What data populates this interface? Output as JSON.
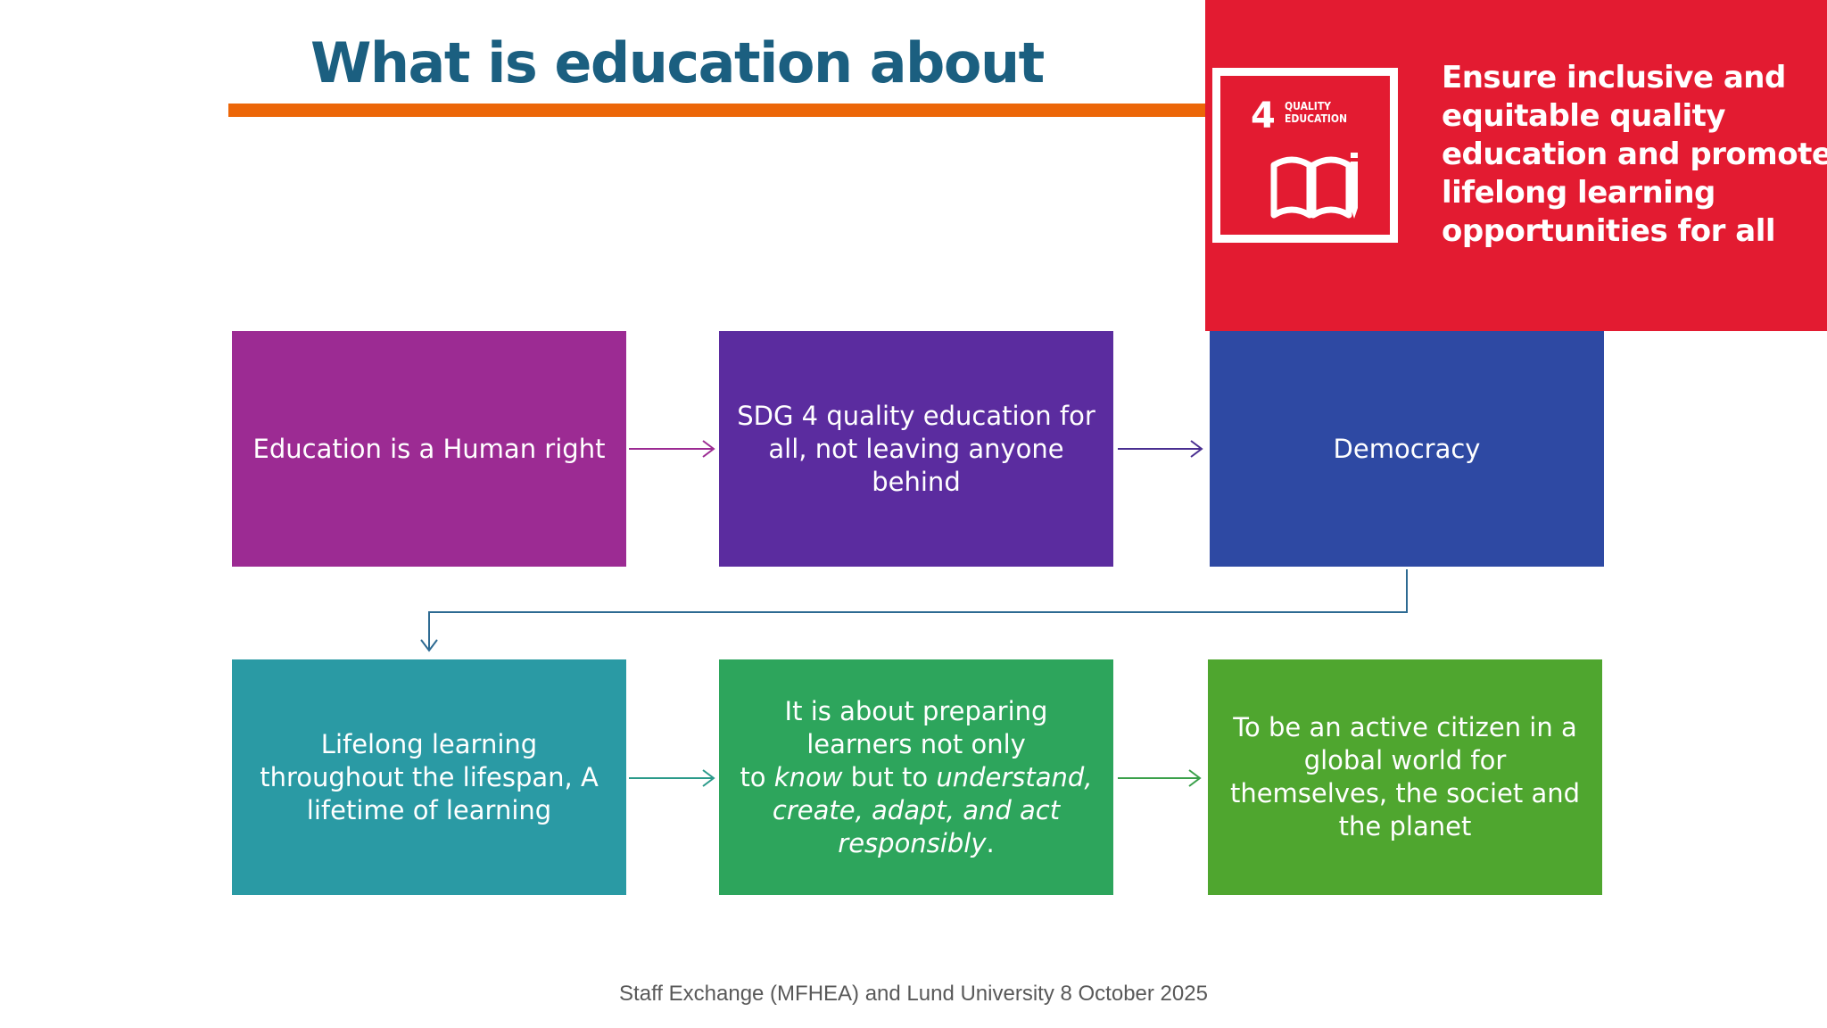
{
  "slide": {
    "title": "What is education about",
    "footer": "Staff Exchange (MFHEA) and Lund University 8 October 2025"
  },
  "sdg": {
    "number": "4",
    "logo_label": "QUALITY EDUCATION",
    "statement_lines": [
      "Ensure inclusive and",
      "equitable quality",
      "education and promote",
      "lifelong learning",
      "opportunities for all"
    ],
    "color": "#e31b31",
    "icon": "open-book-pencil-icon"
  },
  "colors": {
    "title": "#1b5f80",
    "rule": "#ec6608",
    "human_right": "#9c2b93",
    "sdg4": "#5b2c9f",
    "democracy": "#2e49a3",
    "lifelong": "#2a9aa4",
    "preparing": "#2da55c",
    "citizen": "#4fa62f"
  },
  "flow": {
    "row1": {
      "human_right": "Education is a Human right",
      "sdg4": "SDG 4 quality education for all, not leaving anyone behind",
      "democracy": "Democracy"
    },
    "row2": {
      "lifelong": "Lifelong learning throughout the lifespan, A lifetime of learning",
      "preparing": {
        "line1": "It is about preparing learners not only",
        "line2_prefix": "to",
        "know": "know",
        "but_to": "but to",
        "understand": "understand, create, adapt, and act responsibly",
        "end": "."
      },
      "citizen": "To be an active citizen in a global world for themselves, the societ and the planet"
    }
  }
}
